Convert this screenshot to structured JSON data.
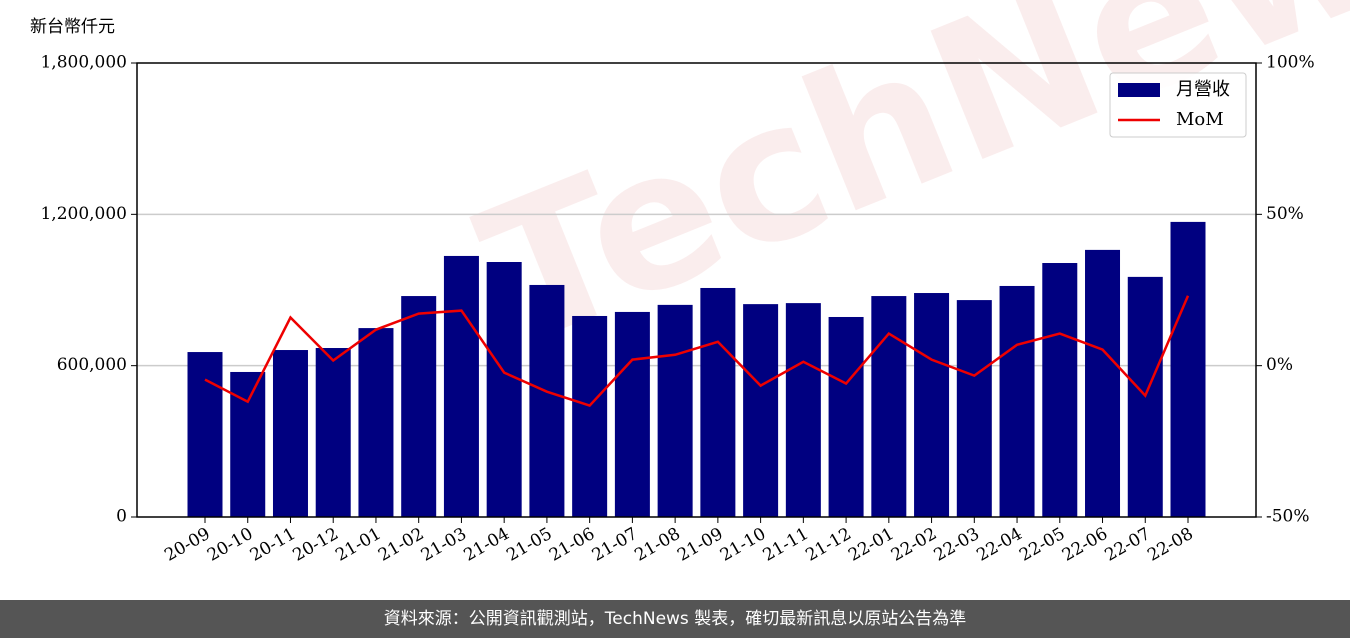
{
  "chart_data": {
    "type": "bar_line",
    "y_label": "新台幣仟元",
    "watermark": "TechNews",
    "footer": "資料來源：公開資訊觀測站，TechNews 製表，確切最新訊息以原站公告為準",
    "categories": [
      "20-09",
      "20-10",
      "20-11",
      "20-12",
      "21-01",
      "21-02",
      "21-03",
      "21-04",
      "21-05",
      "21-06",
      "21-07",
      "21-08",
      "21-09",
      "21-10",
      "21-11",
      "21-12",
      "22-01",
      "22-02",
      "22-03",
      "22-04",
      "22-05",
      "22-06",
      "22-07",
      "22-08"
    ],
    "series": [
      {
        "name": "月營收",
        "type": "bar",
        "color": "#000080",
        "values": [
          654000,
          575000,
          662000,
          670000,
          749000,
          876000,
          1035000,
          1011000,
          920000,
          797000,
          813000,
          841000,
          908000,
          844000,
          848000,
          793000,
          876000,
          888000,
          860000,
          916000,
          1007000,
          1059000,
          952000,
          1170000
        ]
      },
      {
        "name": "MoM",
        "type": "line",
        "axis": "y2",
        "color": "#ee0000",
        "values": [
          -4.6,
          -11.9,
          15.9,
          1.7,
          11.9,
          17.2,
          18.2,
          -2.3,
          -8.6,
          -13.2,
          2.0,
          3.6,
          7.9,
          -6.6,
          1.3,
          -5.9,
          10.6,
          2.0,
          -3.3,
          6.9,
          10.6,
          5.3,
          -9.9,
          23.1
        ]
      }
    ],
    "ylim": [
      0,
      1800000
    ],
    "yticks": [
      0,
      {
        "value": 600000,
        "label": "600,000"
      },
      {
        "value": 1200000,
        "label": "1,200,000"
      },
      {
        "value": 1800000,
        "label": "1,800,000"
      }
    ],
    "y2lim": [
      -50,
      100
    ],
    "y2ticks": [
      {
        "value": -50,
        "label": "-50%"
      },
      {
        "value": 0,
        "label": "0%"
      },
      {
        "value": 50,
        "label": "50%"
      },
      {
        "value": 100,
        "label": "100%"
      }
    ],
    "grid": true,
    "legend": "upper right"
  }
}
